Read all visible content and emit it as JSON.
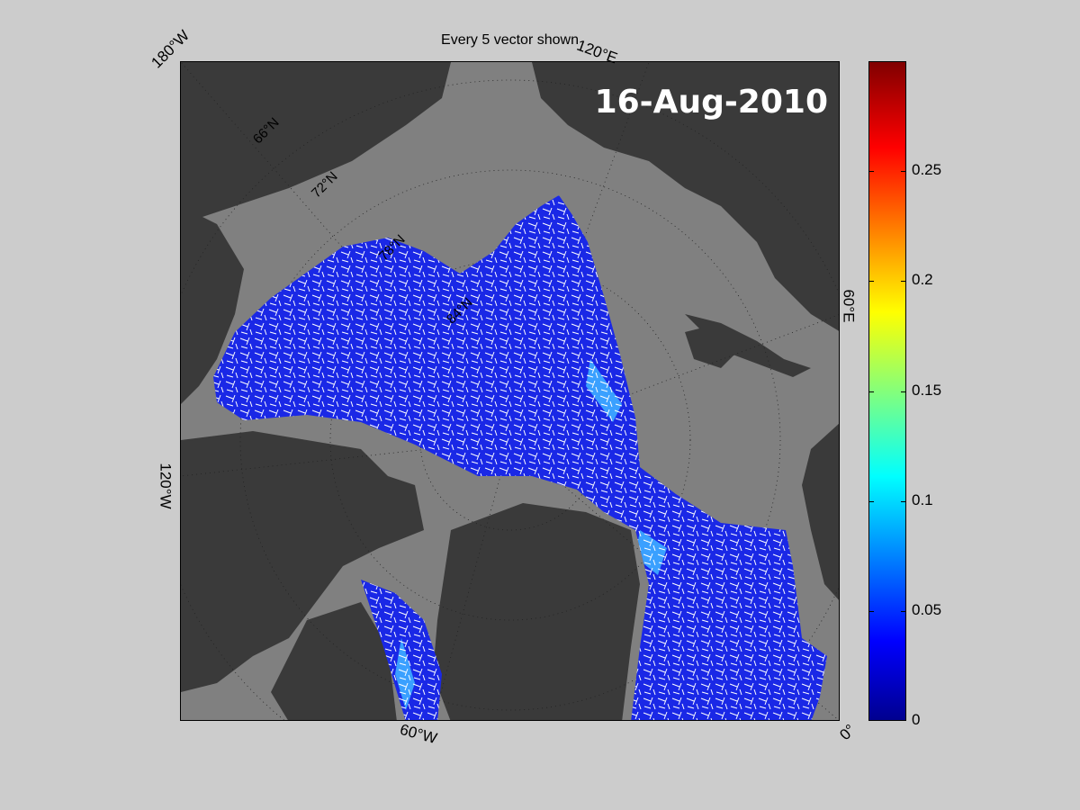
{
  "figure": {
    "title": "Every 5 vector shown",
    "date": "16-Aug-2010"
  },
  "map_labels": {
    "lon_180w": "180°W",
    "lon_120e": "120°E",
    "lon_60e": "60°E",
    "lon_120w": "120°W",
    "lon_60w": "60°W",
    "lon_0": "0°",
    "lat_66n": "66°N",
    "lat_72n": "72°N",
    "lat_78n": "78°N",
    "lat_84n": "84°N"
  },
  "colorbar": {
    "ticks": [
      "0",
      "0.05",
      "0.1",
      "0.15",
      "0.2",
      "0.25"
    ],
    "colors": [
      "#00008f",
      "#0000ff",
      "#00ffff",
      "#ffff00",
      "#ff0000",
      "#800000"
    ]
  },
  "colors": {
    "background": "#cccccc",
    "ocean": "#808080",
    "land": "#3a3a3a",
    "ice": "#1a28e6",
    "vector": "#ffffff"
  }
}
